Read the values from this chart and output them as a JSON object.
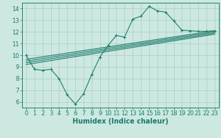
{
  "background_color": "#cce8e0",
  "grid_color": "#aaccc4",
  "line_color": "#1a7a6a",
  "xlabel": "Humidex (Indice chaleur)",
  "xlabel_fontsize": 7,
  "tick_fontsize": 6,
  "xlim": [
    -0.5,
    23.5
  ],
  "ylim": [
    5.5,
    14.5
  ],
  "yticks": [
    6,
    7,
    8,
    9,
    10,
    11,
    12,
    13,
    14
  ],
  "xticks": [
    0,
    1,
    2,
    3,
    4,
    5,
    6,
    7,
    8,
    9,
    10,
    11,
    12,
    13,
    14,
    15,
    16,
    17,
    18,
    19,
    20,
    21,
    22,
    23
  ],
  "line1_x": [
    0,
    1,
    2,
    3,
    4,
    5,
    6,
    7,
    8,
    9,
    10,
    11,
    12,
    13,
    14,
    15,
    16,
    17,
    18,
    19,
    20,
    21,
    22,
    23
  ],
  "line1_y": [
    10.0,
    8.8,
    8.7,
    8.8,
    8.0,
    6.6,
    5.8,
    6.7,
    8.35,
    9.85,
    10.85,
    11.7,
    11.55,
    13.1,
    13.35,
    14.2,
    13.8,
    13.7,
    12.95,
    12.15,
    12.1,
    12.05,
    12.05,
    12.1
  ],
  "line2_x": [
    0,
    23
  ],
  "line2_y": [
    9.65,
    12.1
  ],
  "line3_x": [
    0,
    23
  ],
  "line3_y": [
    9.5,
    12.0
  ],
  "line4_x": [
    0,
    23
  ],
  "line4_y": [
    9.35,
    11.9
  ],
  "line5_x": [
    0,
    23
  ],
  "line5_y": [
    9.2,
    11.8
  ]
}
